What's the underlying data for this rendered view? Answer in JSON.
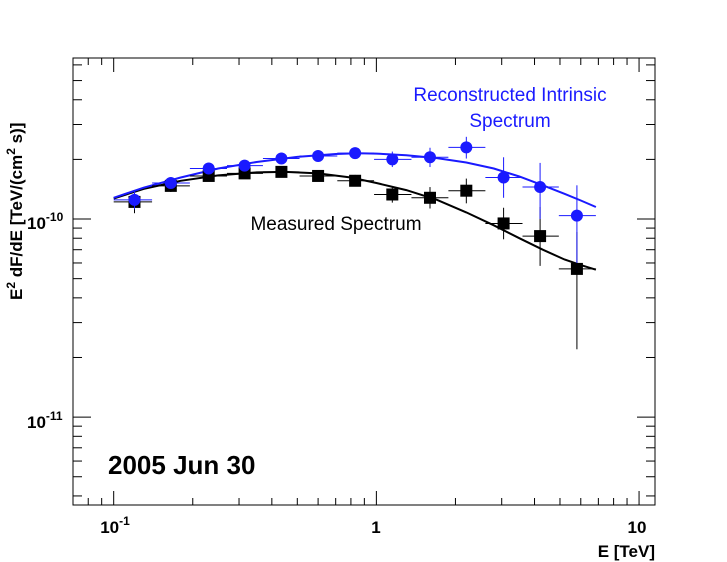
{
  "chart_data": {
    "type": "scatter",
    "title": "",
    "xlabel": "E [TeV]",
    "ylabel": {
      "parts": [
        "E",
        "2",
        " dF/dE [TeV/(cm",
        "2",
        " s)]"
      ]
    },
    "xscale": "log",
    "yscale": "log",
    "xlim": [
      0.07,
      11.5
    ],
    "ylim": [
      3.6e-12,
      6.5e-10
    ],
    "x_ticks": [
      {
        "value": 0.1,
        "base": "10",
        "exp": "-1"
      },
      {
        "value": 1,
        "base": "1",
        "exp": ""
      },
      {
        "value": 10,
        "base": "10",
        "exp": ""
      }
    ],
    "y_ticks": [
      {
        "value": 1e-11,
        "base": "10",
        "exp": "-11"
      },
      {
        "value": 1e-10,
        "base": "10",
        "exp": "-10"
      }
    ],
    "colors": {
      "measured": "#000000",
      "intrinsic": "#1a1aff",
      "frame": "#000000"
    },
    "series": [
      {
        "name": "Measured Spectrum",
        "key": "measured",
        "marker": "square",
        "points": [
          {
            "x": 0.12,
            "y": 1.22e-10,
            "xlo": 0.1,
            "xhi": 0.14,
            "ylo": 1.07e-10,
            "yhi": 1.37e-10
          },
          {
            "x": 0.165,
            "y": 1.47e-10,
            "xlo": 0.14,
            "xhi": 0.195,
            "ylo": 1.37e-10,
            "yhi": 1.57e-10
          },
          {
            "x": 0.23,
            "y": 1.65e-10,
            "xlo": 0.195,
            "xhi": 0.27,
            "ylo": 1.57e-10,
            "yhi": 1.74e-10
          },
          {
            "x": 0.315,
            "y": 1.7e-10,
            "xlo": 0.27,
            "xhi": 0.37,
            "ylo": 1.62e-10,
            "yhi": 1.79e-10
          },
          {
            "x": 0.435,
            "y": 1.73e-10,
            "xlo": 0.37,
            "xhi": 0.51,
            "ylo": 1.65e-10,
            "yhi": 1.82e-10
          },
          {
            "x": 0.6,
            "y": 1.65e-10,
            "xlo": 0.51,
            "xhi": 0.71,
            "ylo": 1.56e-10,
            "yhi": 1.74e-10
          },
          {
            "x": 0.83,
            "y": 1.56e-10,
            "xlo": 0.71,
            "xhi": 0.98,
            "ylo": 1.46e-10,
            "yhi": 1.67e-10
          },
          {
            "x": 1.15,
            "y": 1.33e-10,
            "xlo": 0.98,
            "xhi": 1.36,
            "ylo": 1.21e-10,
            "yhi": 1.46e-10
          },
          {
            "x": 1.6,
            "y": 1.28e-10,
            "xlo": 1.36,
            "xhi": 1.88,
            "ylo": 1.13e-10,
            "yhi": 1.45e-10
          },
          {
            "x": 2.2,
            "y": 1.39e-10,
            "xlo": 1.88,
            "xhi": 2.6,
            "ylo": 1.2e-10,
            "yhi": 1.6e-10
          },
          {
            "x": 3.05,
            "y": 9.5e-11,
            "xlo": 2.6,
            "xhi": 3.6,
            "ylo": 7.9e-11,
            "yhi": 1.14e-10
          },
          {
            "x": 4.2,
            "y": 8.2e-11,
            "xlo": 3.6,
            "xhi": 4.95,
            "ylo": 5.8e-11,
            "yhi": 1.15e-10
          },
          {
            "x": 5.8,
            "y": 5.6e-11,
            "xlo": 4.95,
            "xhi": 6.85,
            "ylo": 2.2e-11,
            "yhi": 8.6e-11
          }
        ],
        "fit": [
          [
            0.1,
            1.27e-10
          ],
          [
            0.13,
            1.42e-10
          ],
          [
            0.18,
            1.56e-10
          ],
          [
            0.25,
            1.66e-10
          ],
          [
            0.35,
            1.72e-10
          ],
          [
            0.45,
            1.73e-10
          ],
          [
            0.6,
            1.7e-10
          ],
          [
            0.8,
            1.62e-10
          ],
          [
            1.0,
            1.52e-10
          ],
          [
            1.3,
            1.4e-10
          ],
          [
            1.7,
            1.25e-10
          ],
          [
            2.2,
            1.08e-10
          ],
          [
            2.8,
            9.3e-11
          ],
          [
            3.5,
            8e-11
          ],
          [
            4.3,
            7e-11
          ],
          [
            5.2,
            6.25e-11
          ],
          [
            6.0,
            5.85e-11
          ],
          [
            6.85,
            5.55e-11
          ]
        ]
      },
      {
        "name": "Reconstructed Intrinsic Spectrum",
        "key": "intrinsic",
        "marker": "circle",
        "points": [
          {
            "x": 0.12,
            "y": 1.25e-10,
            "xlo": 0.1,
            "xhi": 0.14,
            "ylo": 1.12e-10,
            "yhi": 1.38e-10
          },
          {
            "x": 0.165,
            "y": 1.52e-10,
            "xlo": 0.14,
            "xhi": 0.195,
            "ylo": 1.44e-10,
            "yhi": 1.6e-10
          },
          {
            "x": 0.23,
            "y": 1.8e-10,
            "xlo": 0.195,
            "xhi": 0.27,
            "ylo": 1.72e-10,
            "yhi": 1.88e-10
          },
          {
            "x": 0.315,
            "y": 1.86e-10,
            "xlo": 0.27,
            "xhi": 0.37,
            "ylo": 1.78e-10,
            "yhi": 1.94e-10
          },
          {
            "x": 0.435,
            "y": 2.02e-10,
            "xlo": 0.37,
            "xhi": 0.51,
            "ylo": 1.94e-10,
            "yhi": 2.1e-10
          },
          {
            "x": 0.6,
            "y": 2.08e-10,
            "xlo": 0.51,
            "xhi": 0.71,
            "ylo": 1.98e-10,
            "yhi": 2.18e-10
          },
          {
            "x": 0.83,
            "y": 2.15e-10,
            "xlo": 0.71,
            "xhi": 0.98,
            "ylo": 2.03e-10,
            "yhi": 2.27e-10
          },
          {
            "x": 1.15,
            "y": 2e-10,
            "xlo": 0.98,
            "xhi": 1.36,
            "ylo": 1.83e-10,
            "yhi": 2.19e-10
          },
          {
            "x": 1.6,
            "y": 2.05e-10,
            "xlo": 1.36,
            "xhi": 1.88,
            "ylo": 1.83e-10,
            "yhi": 2.29e-10
          },
          {
            "x": 2.2,
            "y": 2.3e-10,
            "xlo": 1.88,
            "xhi": 2.6,
            "ylo": 2.02e-10,
            "yhi": 2.6e-10
          },
          {
            "x": 3.05,
            "y": 1.62e-10,
            "xlo": 2.6,
            "xhi": 3.6,
            "ylo": 1.28e-10,
            "yhi": 2.05e-10
          },
          {
            "x": 4.2,
            "y": 1.45e-10,
            "xlo": 3.6,
            "xhi": 4.95,
            "ylo": 1e-10,
            "yhi": 1.92e-10
          },
          {
            "x": 5.8,
            "y": 1.04e-10,
            "xlo": 4.95,
            "xhi": 6.85,
            "ylo": 6e-11,
            "yhi": 1.48e-10
          }
        ],
        "fit": [
          [
            0.1,
            1.28e-10
          ],
          [
            0.13,
            1.44e-10
          ],
          [
            0.18,
            1.62e-10
          ],
          [
            0.25,
            1.8e-10
          ],
          [
            0.35,
            1.94e-10
          ],
          [
            0.5,
            2.06e-10
          ],
          [
            0.7,
            2.13e-10
          ],
          [
            0.85,
            2.15e-10
          ],
          [
            1.0,
            2.14e-10
          ],
          [
            1.3,
            2.1e-10
          ],
          [
            1.7,
            2.03e-10
          ],
          [
            2.2,
            1.93e-10
          ],
          [
            2.8,
            1.8e-10
          ],
          [
            3.5,
            1.64e-10
          ],
          [
            4.3,
            1.48e-10
          ],
          [
            5.2,
            1.34e-10
          ],
          [
            6.0,
            1.24e-10
          ],
          [
            6.85,
            1.15e-10
          ]
        ]
      }
    ],
    "annotations": [
      {
        "key": "intrinsic_label",
        "lines": [
          "Reconstructed Intrinsic",
          "Spectrum"
        ]
      },
      {
        "key": "measured_label",
        "lines": [
          "Measured Spectrum"
        ]
      },
      {
        "key": "date_label",
        "lines": [
          "2005 Jun 30"
        ]
      }
    ]
  }
}
